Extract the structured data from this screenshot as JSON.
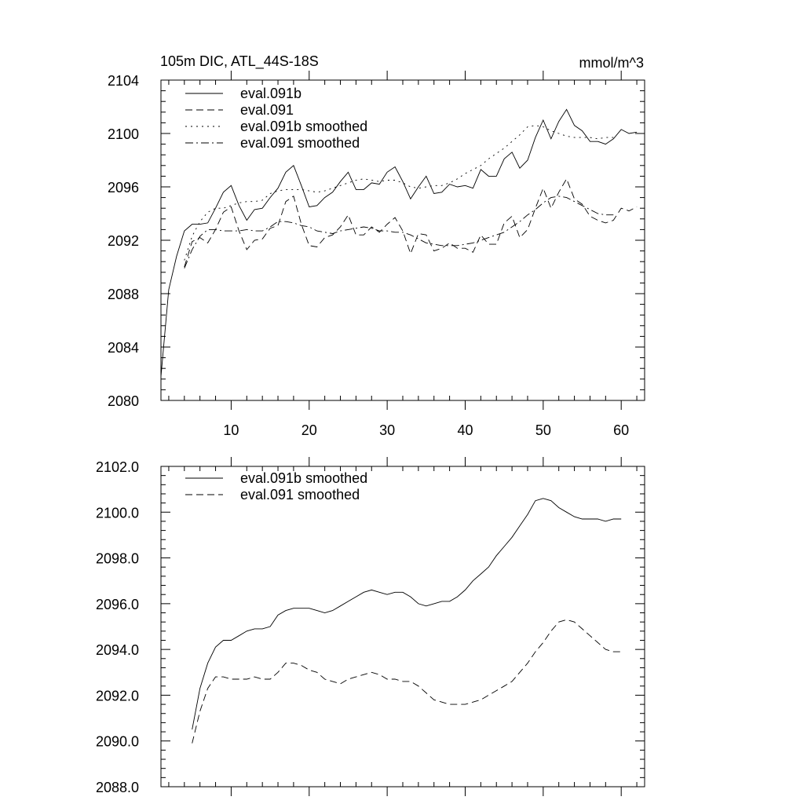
{
  "chart_data": [
    {
      "type": "line",
      "title": "105m DIC, ATL_44S-18S",
      "units": "mmol/m^3",
      "xlim": [
        1,
        63
      ],
      "ylim": [
        2080,
        2104
      ],
      "x_ticks": [
        10,
        20,
        30,
        40,
        50,
        60
      ],
      "x_tick_labels": [
        "10",
        "20",
        "30",
        "40",
        "50",
        "60"
      ],
      "y_ticks": [
        2080,
        2084,
        2088,
        2092,
        2096,
        2100,
        2104
      ],
      "y_tick_labels": [
        "2080",
        "2084",
        "2088",
        "2092",
        "2096",
        "2100",
        "2104"
      ],
      "legend_position": "top-left",
      "series": [
        {
          "name": "eval.091b",
          "style": "solid",
          "x": [
            1,
            2,
            3,
            4,
            5,
            6,
            7,
            8,
            9,
            10,
            11,
            12,
            13,
            14,
            15,
            16,
            17,
            18,
            19,
            20,
            21,
            22,
            23,
            24,
            25,
            26,
            27,
            28,
            29,
            30,
            31,
            32,
            33,
            34,
            35,
            36,
            37,
            38,
            39,
            40,
            41,
            42,
            43,
            44,
            45,
            46,
            47,
            48,
            49,
            50,
            51,
            52,
            53,
            54,
            55,
            56,
            57,
            58,
            59,
            60,
            61,
            62
          ],
          "y": [
            2081.8,
            2088.3,
            2090.8,
            2092.7,
            2093.2,
            2093.2,
            2093.3,
            2094.4,
            2095.6,
            2096.1,
            2094.6,
            2093.5,
            2094.3,
            2094.4,
            2095.2,
            2095.9,
            2097.1,
            2097.6,
            2096.1,
            2094.5,
            2094.6,
            2095.2,
            2095.6,
            2096.4,
            2097.1,
            2095.8,
            2095.8,
            2096.3,
            2096.2,
            2097.1,
            2097.5,
            2096.4,
            2095.1,
            2096.0,
            2096.8,
            2095.5,
            2095.6,
            2096.2,
            2096.0,
            2096.1,
            2095.9,
            2097.3,
            2096.8,
            2096.8,
            2098.1,
            2098.6,
            2097.4,
            2098.0,
            2099.7,
            2101.0,
            2099.6,
            2100.9,
            2101.8,
            2100.6,
            2100.2,
            2099.4,
            2099.4,
            2099.2,
            2099.6,
            2100.3,
            2100.0,
            2100.1
          ]
        },
        {
          "name": "eval.091",
          "style": "dashed",
          "x": [
            4,
            5,
            6,
            7,
            8,
            9,
            10,
            11,
            12,
            13,
            14,
            15,
            16,
            17,
            18,
            19,
            20,
            21,
            22,
            23,
            24,
            25,
            26,
            27,
            28,
            29,
            30,
            31,
            32,
            33,
            34,
            35,
            36,
            37,
            38,
            39,
            40,
            41,
            42,
            43,
            44,
            45,
            46,
            47,
            48,
            49,
            50,
            51,
            52,
            53,
            54,
            55,
            56,
            57,
            58,
            59,
            60,
            61,
            62
          ],
          "y": [
            2090.0,
            2091.9,
            2092.2,
            2091.8,
            2092.8,
            2094.1,
            2094.5,
            2092.7,
            2091.3,
            2092.0,
            2092.1,
            2092.9,
            2093.1,
            2094.9,
            2095.3,
            2093.2,
            2091.6,
            2091.5,
            2092.2,
            2092.4,
            2093.0,
            2093.9,
            2092.4,
            2092.4,
            2093.0,
            2092.6,
            2093.2,
            2093.7,
            2092.7,
            2091.0,
            2092.5,
            2092.4,
            2091.2,
            2091.4,
            2091.8,
            2091.4,
            2091.4,
            2091.1,
            2092.4,
            2091.7,
            2091.7,
            2093.3,
            2093.8,
            2092.2,
            2092.8,
            2094.4,
            2095.9,
            2094.4,
            2095.6,
            2096.6,
            2095.1,
            2094.7,
            2093.8,
            2093.5,
            2093.3,
            2093.5,
            2094.4,
            2094.2,
            2094.5
          ]
        },
        {
          "name": "eval.091b smoothed",
          "style": "dotted",
          "x": [
            4,
            5,
            6,
            7,
            8,
            9,
            10,
            11,
            12,
            13,
            14,
            15,
            16,
            17,
            18,
            19,
            20,
            21,
            22,
            23,
            24,
            25,
            26,
            27,
            28,
            29,
            30,
            31,
            32,
            33,
            34,
            35,
            36,
            37,
            38,
            39,
            40,
            41,
            42,
            43,
            44,
            45,
            46,
            47,
            48,
            49,
            50,
            51,
            52,
            53,
            54,
            55,
            56,
            57,
            58,
            59
          ],
          "y": [
            2090.5,
            2092.3,
            2093.4,
            2094.1,
            2094.4,
            2094.4,
            2094.6,
            2094.8,
            2094.9,
            2094.9,
            2095.0,
            2095.5,
            2095.7,
            2095.8,
            2095.8,
            2095.8,
            2095.7,
            2095.6,
            2095.7,
            2095.9,
            2096.1,
            2096.3,
            2096.5,
            2096.6,
            2096.5,
            2096.4,
            2096.5,
            2096.5,
            2096.3,
            2096.0,
            2095.9,
            2096.0,
            2096.1,
            2096.1,
            2096.3,
            2096.6,
            2097.0,
            2097.3,
            2097.6,
            2098.1,
            2098.5,
            2098.9,
            2099.4,
            2099.9,
            2100.5,
            2100.6,
            2100.5,
            2100.2,
            2100.0,
            2099.8,
            2099.7,
            2099.7,
            2099.7,
            2099.6,
            2099.7,
            2099.7
          ]
        },
        {
          "name": "eval.091 smoothed",
          "style": "dashdot",
          "x": [
            4,
            5,
            6,
            7,
            8,
            9,
            10,
            11,
            12,
            13,
            14,
            15,
            16,
            17,
            18,
            19,
            20,
            21,
            22,
            23,
            24,
            25,
            26,
            27,
            28,
            29,
            30,
            31,
            32,
            33,
            34,
            35,
            36,
            37,
            38,
            39,
            40,
            41,
            42,
            43,
            44,
            45,
            46,
            47,
            48,
            49,
            50,
            51,
            52,
            53,
            54,
            55,
            56,
            57,
            58,
            59
          ],
          "y": [
            2089.9,
            2091.3,
            2092.3,
            2092.8,
            2092.8,
            2092.7,
            2092.7,
            2092.7,
            2092.8,
            2092.7,
            2092.7,
            2093.0,
            2093.4,
            2093.4,
            2093.3,
            2093.1,
            2093.0,
            2092.7,
            2092.6,
            2092.5,
            2092.7,
            2092.8,
            2092.9,
            2093.0,
            2092.9,
            2092.7,
            2092.7,
            2092.6,
            2092.6,
            2092.4,
            2092.1,
            2091.8,
            2091.7,
            2091.6,
            2091.6,
            2091.6,
            2091.7,
            2091.8,
            2092.0,
            2092.2,
            2092.4,
            2092.6,
            2093.0,
            2093.4,
            2093.9,
            2094.3,
            2094.8,
            2095.2,
            2095.3,
            2095.2,
            2094.9,
            2094.6,
            2094.3,
            2094.0,
            2093.9,
            2093.9
          ]
        }
      ]
    },
    {
      "type": "line",
      "title": "",
      "xlim": [
        1,
        63
      ],
      "ylim": [
        2088,
        2102
      ],
      "x_ticks": [
        10,
        20,
        30,
        40,
        50,
        60
      ],
      "x_tick_labels": [],
      "y_ticks": [
        2088,
        2090,
        2092,
        2094,
        2096,
        2098,
        2100,
        2102
      ],
      "y_tick_labels": [
        "2088.0",
        "2090.0",
        "2092.0",
        "2094.0",
        "2096.0",
        "2098.0",
        "2100.0",
        "2102.0"
      ],
      "legend_position": "top-left",
      "series": [
        {
          "name": "eval.091b smoothed",
          "style": "solid",
          "x": [
            5,
            6,
            7,
            8,
            9,
            10,
            11,
            12,
            13,
            14,
            15,
            16,
            17,
            18,
            19,
            20,
            21,
            22,
            23,
            24,
            25,
            26,
            27,
            28,
            29,
            30,
            31,
            32,
            33,
            34,
            35,
            36,
            37,
            38,
            39,
            40,
            41,
            42,
            43,
            44,
            45,
            46,
            47,
            48,
            49,
            50,
            51,
            52,
            53,
            54,
            55,
            56,
            57,
            58,
            59,
            60
          ],
          "y": [
            2090.5,
            2092.3,
            2093.4,
            2094.1,
            2094.4,
            2094.4,
            2094.6,
            2094.8,
            2094.9,
            2094.9,
            2095.0,
            2095.5,
            2095.7,
            2095.8,
            2095.8,
            2095.8,
            2095.7,
            2095.6,
            2095.7,
            2095.9,
            2096.1,
            2096.3,
            2096.5,
            2096.6,
            2096.5,
            2096.4,
            2096.5,
            2096.5,
            2096.3,
            2096.0,
            2095.9,
            2096.0,
            2096.1,
            2096.1,
            2096.3,
            2096.6,
            2097.0,
            2097.3,
            2097.6,
            2098.1,
            2098.5,
            2098.9,
            2099.4,
            2099.9,
            2100.5,
            2100.6,
            2100.5,
            2100.2,
            2100.0,
            2099.8,
            2099.7,
            2099.7,
            2099.7,
            2099.6,
            2099.7,
            2099.7
          ]
        },
        {
          "name": "eval.091 smoothed",
          "style": "dashed",
          "x": [
            5,
            6,
            7,
            8,
            9,
            10,
            11,
            12,
            13,
            14,
            15,
            16,
            17,
            18,
            19,
            20,
            21,
            22,
            23,
            24,
            25,
            26,
            27,
            28,
            29,
            30,
            31,
            32,
            33,
            34,
            35,
            36,
            37,
            38,
            39,
            40,
            41,
            42,
            43,
            44,
            45,
            46,
            47,
            48,
            49,
            50,
            51,
            52,
            53,
            54,
            55,
            56,
            57,
            58,
            59,
            60
          ],
          "y": [
            2089.9,
            2091.3,
            2092.3,
            2092.8,
            2092.8,
            2092.7,
            2092.7,
            2092.7,
            2092.8,
            2092.7,
            2092.7,
            2093.0,
            2093.4,
            2093.4,
            2093.3,
            2093.1,
            2093.0,
            2092.7,
            2092.6,
            2092.5,
            2092.7,
            2092.8,
            2092.9,
            2093.0,
            2092.9,
            2092.7,
            2092.7,
            2092.6,
            2092.6,
            2092.4,
            2092.1,
            2091.8,
            2091.7,
            2091.6,
            2091.6,
            2091.6,
            2091.7,
            2091.8,
            2092.0,
            2092.2,
            2092.4,
            2092.6,
            2093.0,
            2093.4,
            2093.9,
            2094.3,
            2094.8,
            2095.2,
            2095.3,
            2095.2,
            2094.9,
            2094.6,
            2094.3,
            2094.0,
            2093.9,
            2093.9
          ]
        }
      ]
    }
  ]
}
